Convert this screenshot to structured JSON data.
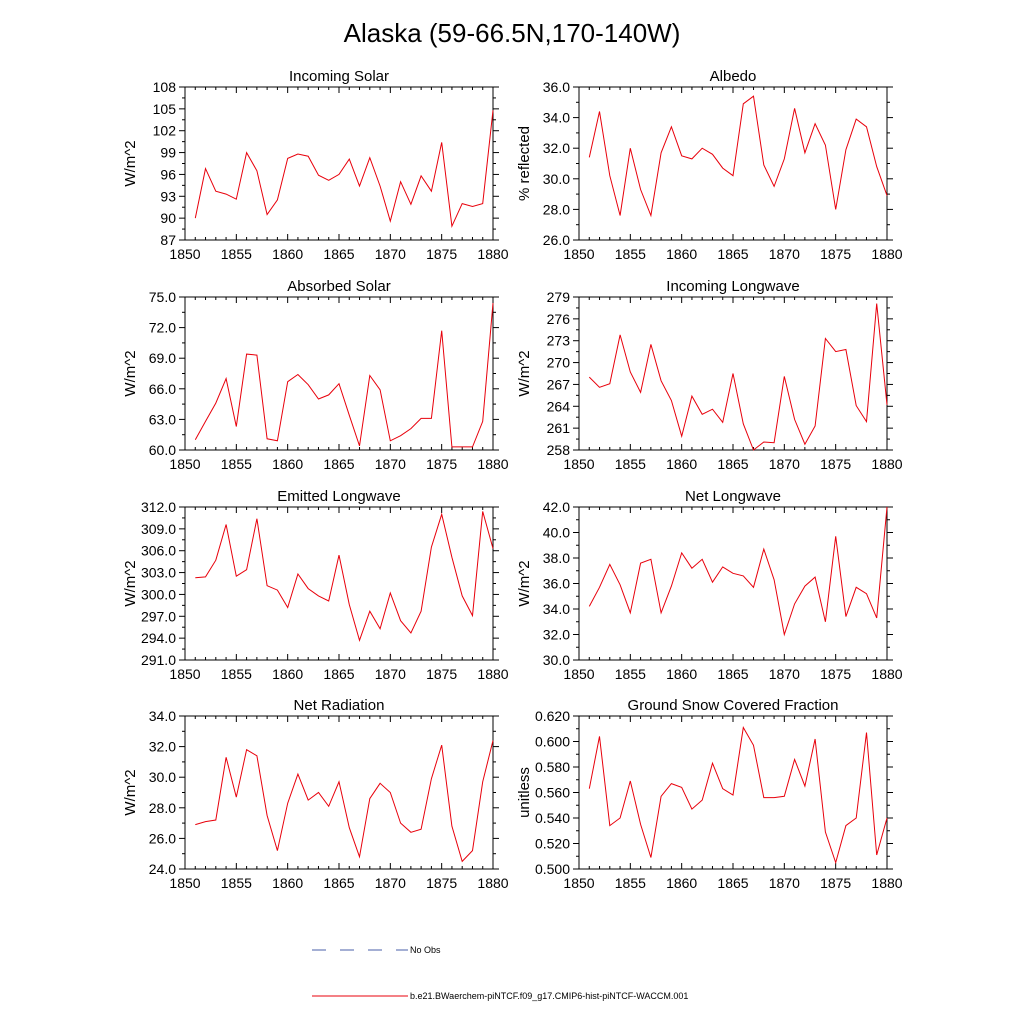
{
  "page": {
    "title": "Alaska (59-66.5N,170-140W)"
  },
  "legend": {
    "obs_label": "No Obs",
    "model_label": "b.e21.BWaerchem-piNTCF.f09_g17.CMIP6-hist-piNTCF-WACCM.001",
    "obs_color": "#4a5fa8",
    "model_color": "#e8000b"
  },
  "chart_data": [
    {
      "type": "line",
      "title": "Incoming Solar",
      "ylabel": "W/m^2",
      "xlim": [
        1850,
        1880
      ],
      "ylim": [
        87,
        108
      ],
      "xticks": [
        1850,
        1855,
        1860,
        1865,
        1870,
        1875,
        1880
      ],
      "yticks": [
        "87",
        "90",
        "93",
        "96",
        "99",
        "102",
        "105",
        "108"
      ],
      "x": [
        1851,
        1852,
        1853,
        1854,
        1855,
        1856,
        1857,
        1858,
        1859,
        1860,
        1861,
        1862,
        1863,
        1864,
        1865,
        1866,
        1867,
        1868,
        1869,
        1870,
        1871,
        1872,
        1873,
        1874,
        1875,
        1876,
        1877,
        1878,
        1879,
        1880
      ],
      "series": [
        {
          "values": [
            90.0,
            96.8,
            93.7,
            93.3,
            92.6,
            99.0,
            96.5,
            90.5,
            92.5,
            98.2,
            98.8,
            98.5,
            95.9,
            95.2,
            96.0,
            98.1,
            94.4,
            98.3,
            94.4,
            89.6,
            95.0,
            91.9,
            95.8,
            93.7,
            100.4,
            88.9,
            92.0,
            91.6,
            92.0,
            104.8
          ]
        }
      ]
    },
    {
      "type": "line",
      "title": "Albedo",
      "ylabel": "% reflected",
      "xlim": [
        1850,
        1880
      ],
      "ylim": [
        26,
        36
      ],
      "xticks": [
        1850,
        1855,
        1860,
        1865,
        1870,
        1875,
        1880
      ],
      "yticks": [
        "26.0",
        "28.0",
        "30.0",
        "32.0",
        "34.0",
        "36.0"
      ],
      "x": [
        1851,
        1852,
        1853,
        1854,
        1855,
        1856,
        1857,
        1858,
        1859,
        1860,
        1861,
        1862,
        1863,
        1864,
        1865,
        1866,
        1867,
        1868,
        1869,
        1870,
        1871,
        1872,
        1873,
        1874,
        1875,
        1876,
        1877,
        1878,
        1879,
        1880
      ],
      "series": [
        {
          "values": [
            31.4,
            34.4,
            30.2,
            27.6,
            32.0,
            29.3,
            27.6,
            31.7,
            33.4,
            31.5,
            31.3,
            32.0,
            31.6,
            30.7,
            30.2,
            34.9,
            35.4,
            30.9,
            29.5,
            31.3,
            34.6,
            31.7,
            33.6,
            32.2,
            28.0,
            31.9,
            33.9,
            33.4,
            30.8,
            28.9
          ]
        }
      ]
    },
    {
      "type": "line",
      "title": "Absorbed Solar",
      "ylabel": "W/m^2",
      "xlim": [
        1850,
        1880
      ],
      "ylim": [
        60,
        75
      ],
      "xticks": [
        1850,
        1855,
        1860,
        1865,
        1870,
        1875,
        1880
      ],
      "yticks": [
        "60.0",
        "63.0",
        "66.0",
        "69.0",
        "72.0",
        "75.0"
      ],
      "x": [
        1851,
        1852,
        1853,
        1854,
        1855,
        1856,
        1857,
        1858,
        1859,
        1860,
        1861,
        1862,
        1863,
        1864,
        1865,
        1866,
        1867,
        1868,
        1869,
        1870,
        1871,
        1872,
        1873,
        1874,
        1875,
        1876,
        1877,
        1878,
        1879,
        1880
      ],
      "series": [
        {
          "values": [
            61.0,
            62.8,
            64.6,
            67.0,
            62.3,
            69.4,
            69.3,
            61.1,
            60.9,
            66.7,
            67.4,
            66.4,
            65.0,
            65.4,
            66.5,
            63.4,
            60.4,
            67.3,
            65.9,
            60.9,
            61.4,
            62.1,
            63.1,
            63.1,
            71.7,
            60.3,
            60.3,
            60.3,
            62.8,
            74.4
          ]
        }
      ]
    },
    {
      "type": "line",
      "title": "Incoming Longwave",
      "ylabel": "W/m^2",
      "xlim": [
        1850,
        1880
      ],
      "ylim": [
        258,
        279
      ],
      "xticks": [
        1850,
        1855,
        1860,
        1865,
        1870,
        1875,
        1880
      ],
      "yticks": [
        "258",
        "261",
        "264",
        "267",
        "270",
        "273",
        "276",
        "279"
      ],
      "x": [
        1851,
        1852,
        1853,
        1854,
        1855,
        1856,
        1857,
        1858,
        1859,
        1860,
        1861,
        1862,
        1863,
        1864,
        1865,
        1866,
        1867,
        1868,
        1869,
        1870,
        1871,
        1872,
        1873,
        1874,
        1875,
        1876,
        1877,
        1878,
        1879,
        1880
      ],
      "series": [
        {
          "values": [
            268.0,
            266.6,
            267.1,
            273.8,
            268.7,
            265.9,
            272.5,
            267.5,
            264.8,
            259.9,
            265.4,
            262.9,
            263.6,
            261.8,
            268.5,
            261.6,
            258.0,
            259.1,
            259.0,
            268.1,
            262.2,
            258.8,
            261.3,
            273.3,
            271.5,
            271.8,
            264.1,
            261.9,
            278.1,
            264.2
          ]
        }
      ]
    },
    {
      "type": "line",
      "title": "Emitted Longwave",
      "ylabel": "W/m^2",
      "xlim": [
        1850,
        1880
      ],
      "ylim": [
        291,
        312
      ],
      "xticks": [
        1850,
        1855,
        1860,
        1865,
        1870,
        1875,
        1880
      ],
      "yticks": [
        "291.0",
        "294.0",
        "297.0",
        "300.0",
        "303.0",
        "306.0",
        "309.0",
        "312.0"
      ],
      "x": [
        1851,
        1852,
        1853,
        1854,
        1855,
        1856,
        1857,
        1858,
        1859,
        1860,
        1861,
        1862,
        1863,
        1864,
        1865,
        1866,
        1867,
        1868,
        1869,
        1870,
        1871,
        1872,
        1873,
        1874,
        1875,
        1876,
        1877,
        1878,
        1879,
        1880
      ],
      "series": [
        {
          "values": [
            302.3,
            302.4,
            304.7,
            309.6,
            302.5,
            303.4,
            310.4,
            301.2,
            300.6,
            298.2,
            302.8,
            300.8,
            299.8,
            299.1,
            305.4,
            298.6,
            293.7,
            297.7,
            295.3,
            300.2,
            296.4,
            294.7,
            297.7,
            306.5,
            311.0,
            305.1,
            299.8,
            297.1,
            311.4,
            306.3
          ]
        }
      ]
    },
    {
      "type": "line",
      "title": "Net Longwave",
      "ylabel": "W/m^2",
      "xlim": [
        1850,
        1880
      ],
      "ylim": [
        30,
        42
      ],
      "xticks": [
        1850,
        1855,
        1860,
        1865,
        1870,
        1875,
        1880
      ],
      "yticks": [
        "30.0",
        "32.0",
        "34.0",
        "36.0",
        "38.0",
        "40.0",
        "42.0"
      ],
      "x": [
        1851,
        1852,
        1853,
        1854,
        1855,
        1856,
        1857,
        1858,
        1859,
        1860,
        1861,
        1862,
        1863,
        1864,
        1865,
        1866,
        1867,
        1868,
        1869,
        1870,
        1871,
        1872,
        1873,
        1874,
        1875,
        1876,
        1877,
        1878,
        1879,
        1880
      ],
      "series": [
        {
          "values": [
            34.2,
            35.7,
            37.5,
            35.9,
            33.7,
            37.6,
            37.9,
            33.7,
            35.8,
            38.4,
            37.2,
            37.9,
            36.1,
            37.3,
            36.8,
            36.6,
            35.7,
            38.7,
            36.3,
            32.0,
            34.4,
            35.8,
            36.5,
            33.0,
            39.7,
            33.4,
            35.7,
            35.2,
            33.3,
            42.0
          ]
        }
      ]
    },
    {
      "type": "line",
      "title": "Net Radiation",
      "ylabel": "W/m^2",
      "xlim": [
        1850,
        1880
      ],
      "ylim": [
        24,
        34
      ],
      "xticks": [
        1850,
        1855,
        1860,
        1865,
        1870,
        1875,
        1880
      ],
      "yticks": [
        "24.0",
        "26.0",
        "28.0",
        "30.0",
        "32.0",
        "34.0"
      ],
      "x": [
        1851,
        1852,
        1853,
        1854,
        1855,
        1856,
        1857,
        1858,
        1859,
        1860,
        1861,
        1862,
        1863,
        1864,
        1865,
        1866,
        1867,
        1868,
        1869,
        1870,
        1871,
        1872,
        1873,
        1874,
        1875,
        1876,
        1877,
        1878,
        1879,
        1880
      ],
      "series": [
        {
          "values": [
            26.9,
            27.1,
            27.2,
            31.3,
            28.7,
            31.8,
            31.4,
            27.5,
            25.2,
            28.3,
            30.2,
            28.5,
            29.0,
            28.1,
            29.7,
            26.7,
            24.8,
            28.6,
            29.6,
            29.0,
            27.0,
            26.4,
            26.6,
            29.9,
            32.1,
            26.8,
            24.5,
            25.2,
            29.7,
            32.4
          ]
        }
      ]
    },
    {
      "type": "line",
      "title": "Ground Snow Covered Fraction",
      "ylabel": "unitless",
      "xlim": [
        1850,
        1880
      ],
      "ylim": [
        0.5,
        0.62
      ],
      "xticks": [
        1850,
        1855,
        1860,
        1865,
        1870,
        1875,
        1880
      ],
      "yticks": [
        "0.500",
        "0.520",
        "0.540",
        "0.560",
        "0.580",
        "0.600",
        "0.620"
      ],
      "x": [
        1851,
        1852,
        1853,
        1854,
        1855,
        1856,
        1857,
        1858,
        1859,
        1860,
        1861,
        1862,
        1863,
        1864,
        1865,
        1866,
        1867,
        1868,
        1869,
        1870,
        1871,
        1872,
        1873,
        1874,
        1875,
        1876,
        1877,
        1878,
        1879,
        1880
      ],
      "series": [
        {
          "values": [
            0.563,
            0.604,
            0.534,
            0.54,
            0.569,
            0.535,
            0.509,
            0.557,
            0.567,
            0.564,
            0.547,
            0.554,
            0.583,
            0.563,
            0.558,
            0.611,
            0.597,
            0.556,
            0.556,
            0.557,
            0.586,
            0.565,
            0.602,
            0.529,
            0.505,
            0.534,
            0.54,
            0.607,
            0.511,
            0.54
          ]
        }
      ]
    }
  ]
}
